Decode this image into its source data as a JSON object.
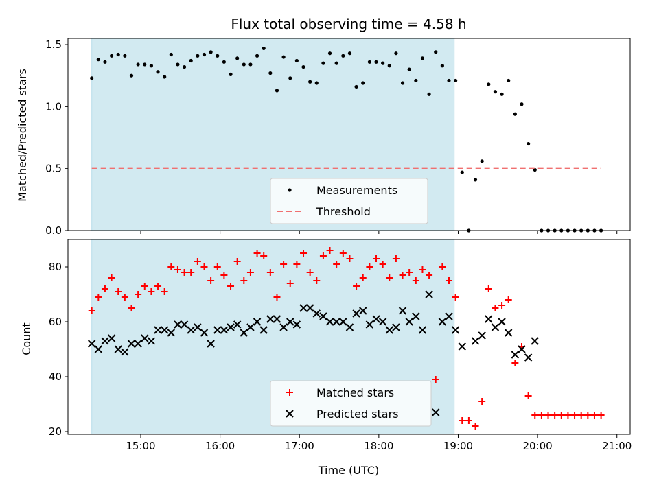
{
  "chart_data": [
    {
      "type": "scatter",
      "title": "Flux total observing time = 4.58 h",
      "ylabel": "Matched/Predicted stars",
      "xlabel": "",
      "xlim": [
        "14:05",
        "21:10"
      ],
      "ylim": [
        0,
        1.55
      ],
      "yticks": [
        0.0,
        0.5,
        1.0,
        1.5
      ],
      "ytick_labels": [
        "0.0",
        "0.5",
        "1.0",
        "1.5"
      ],
      "shaded_span": [
        "14:23",
        "18:57"
      ],
      "legend_position": "lower center",
      "series": [
        {
          "name": "Measurements",
          "marker": "dot",
          "color": "#000000",
          "x": [
            "14:23",
            "14:28",
            "14:33",
            "14:38",
            "14:43",
            "14:48",
            "14:53",
            "14:58",
            "15:03",
            "15:08",
            "15:13",
            "15:18",
            "15:23",
            "15:28",
            "15:33",
            "15:38",
            "15:43",
            "15:48",
            "15:53",
            "15:58",
            "16:03",
            "16:08",
            "16:13",
            "16:18",
            "16:23",
            "16:28",
            "16:33",
            "16:38",
            "16:43",
            "16:48",
            "16:53",
            "16:58",
            "17:03",
            "17:08",
            "17:13",
            "17:18",
            "17:23",
            "17:28",
            "17:33",
            "17:38",
            "17:43",
            "17:48",
            "17:53",
            "17:58",
            "18:03",
            "18:08",
            "18:13",
            "18:18",
            "18:23",
            "18:28",
            "18:33",
            "18:38",
            "18:43",
            "18:48",
            "18:53",
            "18:58",
            "19:03",
            "19:08",
            "19:13",
            "19:18",
            "19:23",
            "19:28",
            "19:33",
            "19:38",
            "19:43",
            "19:48",
            "19:53",
            "19:58",
            "20:03",
            "20:08",
            "20:13",
            "20:18",
            "20:23",
            "20:28",
            "20:33",
            "20:38",
            "20:43",
            "20:48"
          ],
          "values": [
            1.23,
            1.38,
            1.36,
            1.41,
            1.42,
            1.41,
            1.25,
            1.34,
            1.34,
            1.33,
            1.28,
            1.24,
            1.42,
            1.34,
            1.32,
            1.37,
            1.41,
            1.42,
            1.44,
            1.41,
            1.36,
            1.26,
            1.39,
            1.34,
            1.34,
            1.41,
            1.47,
            1.27,
            1.13,
            1.4,
            1.23,
            1.37,
            1.32,
            1.2,
            1.19,
            1.35,
            1.43,
            1.35,
            1.41,
            1.43,
            1.16,
            1.19,
            1.36,
            1.36,
            1.35,
            1.33,
            1.43,
            1.19,
            1.3,
            1.21,
            1.39,
            1.1,
            1.44,
            1.33,
            1.21,
            1.21,
            0.47,
            0.0,
            0.41,
            0.56,
            1.18,
            1.12,
            1.1,
            1.21,
            0.94,
            1.02,
            0.7,
            0.49,
            0.0,
            0.0,
            0.0,
            0.0,
            0.0,
            0.0,
            0.0,
            0.0,
            0.0,
            0.0
          ]
        },
        {
          "name": "Threshold",
          "marker": "dashed-line",
          "color": "#f07070",
          "x": [
            "14:23",
            "20:48"
          ],
          "values": [
            0.5,
            0.5
          ]
        }
      ]
    },
    {
      "type": "scatter",
      "title": "",
      "ylabel": "Count",
      "xlabel": "Time (UTC)",
      "xlim": [
        "14:05",
        "21:10"
      ],
      "ylim": [
        19,
        90
      ],
      "xticks": [
        "15:00",
        "16:00",
        "17:00",
        "18:00",
        "19:00",
        "20:00",
        "21:00"
      ],
      "yticks": [
        20,
        40,
        60,
        80
      ],
      "ytick_labels": [
        "20",
        "40",
        "60",
        "80"
      ],
      "shaded_span": [
        "14:23",
        "18:57"
      ],
      "legend_position": "lower center",
      "series": [
        {
          "name": "Matched stars",
          "marker": "plus",
          "color": "#ff0000",
          "x": [
            "14:23",
            "14:28",
            "14:33",
            "14:38",
            "14:43",
            "14:48",
            "14:53",
            "14:58",
            "15:03",
            "15:08",
            "15:13",
            "15:18",
            "15:23",
            "15:28",
            "15:33",
            "15:38",
            "15:43",
            "15:48",
            "15:53",
            "15:58",
            "16:03",
            "16:08",
            "16:13",
            "16:18",
            "16:23",
            "16:28",
            "16:33",
            "16:38",
            "16:43",
            "16:48",
            "16:53",
            "16:58",
            "17:03",
            "17:08",
            "17:13",
            "17:18",
            "17:23",
            "17:28",
            "17:33",
            "17:38",
            "17:43",
            "17:48",
            "17:53",
            "17:58",
            "18:03",
            "18:08",
            "18:13",
            "18:18",
            "18:23",
            "18:28",
            "18:33",
            "18:38",
            "18:43",
            "18:48",
            "18:53",
            "18:58",
            "19:03",
            "19:08",
            "19:13",
            "19:18",
            "19:23",
            "19:28",
            "19:33",
            "19:38",
            "19:43",
            "19:48",
            "19:53",
            "19:58",
            "20:03",
            "20:08",
            "20:13",
            "20:18",
            "20:23",
            "20:28",
            "20:33",
            "20:38",
            "20:43",
            "20:48"
          ],
          "values": [
            64,
            69,
            72,
            76,
            71,
            69,
            65,
            70,
            73,
            71,
            73,
            71,
            80,
            79,
            78,
            78,
            82,
            80,
            75,
            80,
            77,
            73,
            82,
            75,
            78,
            85,
            84,
            78,
            69,
            81,
            74,
            81,
            85,
            78,
            75,
            84,
            86,
            81,
            85,
            83,
            73,
            76,
            80,
            83,
            81,
            76,
            83,
            77,
            78,
            75,
            79,
            77,
            39,
            80,
            75,
            69,
            24,
            24,
            22,
            31,
            72,
            65,
            66,
            68,
            45,
            51,
            33,
            26,
            26,
            26,
            26,
            26,
            26,
            26,
            26,
            26,
            26,
            26
          ]
        },
        {
          "name": "Predicted stars",
          "marker": "x",
          "color": "#000000",
          "x": [
            "14:23",
            "14:28",
            "14:33",
            "14:38",
            "14:43",
            "14:48",
            "14:53",
            "14:58",
            "15:03",
            "15:08",
            "15:13",
            "15:18",
            "15:23",
            "15:28",
            "15:33",
            "15:38",
            "15:43",
            "15:48",
            "15:53",
            "15:58",
            "16:03",
            "16:08",
            "16:13",
            "16:18",
            "16:23",
            "16:28",
            "16:33",
            "16:38",
            "16:43",
            "16:48",
            "16:53",
            "16:58",
            "17:03",
            "17:08",
            "17:13",
            "17:18",
            "17:23",
            "17:28",
            "17:33",
            "17:38",
            "17:43",
            "17:48",
            "17:53",
            "17:58",
            "18:03",
            "18:08",
            "18:13",
            "18:18",
            "18:23",
            "18:28",
            "18:33",
            "18:38",
            "18:43",
            "18:48",
            "18:53",
            "18:58",
            "19:03",
            "19:13",
            "19:18",
            "19:23",
            "19:28",
            "19:33",
            "19:38",
            "19:43",
            "19:48",
            "19:53",
            "19:58"
          ],
          "values": [
            52,
            50,
            53,
            54,
            50,
            49,
            52,
            52,
            54,
            53,
            57,
            57,
            56,
            59,
            59,
            57,
            58,
            56,
            52,
            57,
            57,
            58,
            59,
            56,
            58,
            60,
            57,
            61,
            61,
            58,
            60,
            59,
            65,
            65,
            63,
            62,
            60,
            60,
            60,
            58,
            63,
            64,
            59,
            61,
            60,
            57,
            58,
            64,
            60,
            62,
            57,
            70,
            27,
            60,
            62,
            57,
            51,
            53,
            55,
            61,
            58,
            60,
            56,
            48,
            50,
            47,
            53
          ]
        }
      ]
    }
  ],
  "legend_top": [
    "Measurements",
    "Threshold"
  ],
  "legend_bottom": [
    "Matched stars",
    "Predicted stars"
  ],
  "colors": {
    "shade": "#add8e6",
    "threshold": "#f07070",
    "matched": "#ff0000",
    "predicted": "#000000"
  }
}
